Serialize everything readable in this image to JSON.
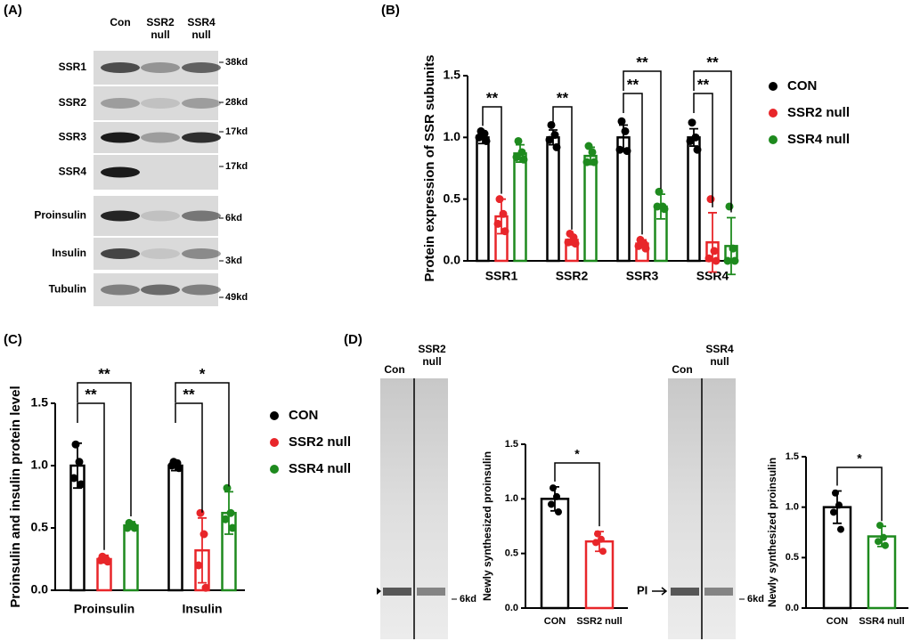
{
  "panel_labels": [
    "(A)",
    "(B)",
    "(C)",
    "(D)"
  ],
  "blot": {
    "lanes": [
      "Con",
      "SSR2 null",
      "SSR4 null"
    ],
    "rows": [
      {
        "label": "SSR1",
        "marker": "38kd"
      },
      {
        "label": "SSR2",
        "marker": "28kd"
      },
      {
        "label": "SSR3",
        "marker": "17kd"
      },
      {
        "label": "SSR4",
        "marker": "17kd"
      },
      {
        "label": "Proinsulin",
        "marker": "6kd"
      },
      {
        "label": "Insulin",
        "marker": "3kd"
      },
      {
        "label": "Tubulin",
        "marker": "49kd"
      }
    ]
  },
  "gels": [
    {
      "lanes": [
        "Con",
        "SSR2 null"
      ],
      "marker": "6kd"
    },
    {
      "lanes": [
        "Con",
        "SSR4 null"
      ],
      "marker": "6kd",
      "arrow_label": "PI"
    }
  ],
  "chart_data": [
    {
      "type": "bar",
      "ylabel": "Protein expression of SSR subunits",
      "categories": [
        "SSR1",
        "SSR2",
        "SSR3",
        "SSR4"
      ],
      "ylim": [
        0,
        1.5
      ],
      "yticks": [
        {
          "value": 0,
          "label": "0.0"
        },
        0.5,
        {
          "value": 1,
          "label": "1.0"
        },
        1.5
      ],
      "series": [
        {
          "name": "CON",
          "color": "#000000",
          "values": [
            1.0,
            1.0,
            1.0,
            1.0
          ],
          "errors": [
            0.05,
            0.06,
            0.1,
            0.07
          ],
          "points": [
            [
              1.05,
              1.03,
              1.0,
              0.97
            ],
            [
              1.1,
              1.02,
              0.98,
              0.92
            ],
            [
              1.13,
              1.05,
              0.9,
              0.89
            ],
            [
              1.12,
              1.0,
              0.97,
              0.9
            ]
          ]
        },
        {
          "name": "SSR2 null",
          "color": "#e8262a",
          "values": [
            0.36,
            0.17,
            0.14,
            0.15
          ],
          "errors": [
            0.14,
            0.04,
            0.03,
            0.24
          ],
          "points": [
            [
              0.5,
              0.38,
              0.3,
              0.24
            ],
            [
              0.22,
              0.19,
              0.15,
              0.14
            ],
            [
              0.17,
              0.14,
              0.12,
              0.1
            ],
            [
              0.5,
              0.08,
              0.02,
              0.0
            ]
          ]
        },
        {
          "name": "SSR4 null",
          "color": "#1e8a1e",
          "values": [
            0.87,
            0.85,
            0.44,
            0.12
          ],
          "errors": [
            0.07,
            0.07,
            0.1,
            0.23
          ],
          "points": [
            [
              0.97,
              0.88,
              0.84,
              0.82
            ],
            [
              0.93,
              0.88,
              0.8,
              0.8
            ],
            [
              0.56,
              0.44,
              0.44,
              0.42
            ],
            [
              0.44,
              0.1,
              0.0,
              0.0
            ]
          ]
        }
      ],
      "annotations": [
        {
          "text": "**",
          "category": 0,
          "series": [
            0,
            1
          ]
        },
        {
          "text": "**",
          "category": 1,
          "series": [
            0,
            1
          ]
        },
        {
          "text": "**",
          "category": 2,
          "series": [
            0,
            1
          ]
        },
        {
          "text": "**",
          "category": 2,
          "series": [
            0,
            2
          ]
        },
        {
          "text": "**",
          "category": 3,
          "series": [
            0,
            1
          ]
        },
        {
          "text": "**",
          "category": 3,
          "series": [
            0,
            2
          ]
        }
      ]
    },
    {
      "type": "bar",
      "ylabel": "Proinsulin and insulin protein level",
      "categories": [
        "Proinsulin",
        "Insulin"
      ],
      "ylim": [
        0,
        1.5
      ],
      "yticks": [
        {
          "value": 0,
          "label": "0.0"
        },
        0.5,
        {
          "value": 1,
          "label": "1.0"
        },
        1.5
      ],
      "series": [
        {
          "name": "CON",
          "color": "#000000",
          "values": [
            1.0,
            1.0
          ],
          "errors": [
            0.18,
            0.04
          ],
          "points": [
            [
              1.17,
              1.03,
              0.9,
              0.85
            ],
            [
              1.03,
              1.02,
              1.0,
              0.98
            ]
          ]
        },
        {
          "name": "SSR2 null",
          "color": "#e8262a",
          "values": [
            0.25,
            0.32
          ],
          "errors": [
            0.03,
            0.26
          ],
          "points": [
            [
              0.27,
              0.25,
              0.24,
              0.23
            ],
            [
              0.62,
              0.45,
              0.2,
              0.02
            ]
          ]
        },
        {
          "name": "SSR4 null",
          "color": "#1e8a1e",
          "values": [
            0.52,
            0.62
          ],
          "errors": [
            0.03,
            0.17
          ],
          "points": [
            [
              0.54,
              0.52,
              0.5,
              0.5
            ],
            [
              0.82,
              0.62,
              0.57,
              0.5
            ]
          ]
        }
      ],
      "annotations": [
        {
          "text": "**",
          "category": 0,
          "series": [
            0,
            1
          ]
        },
        {
          "text": "**",
          "category": 0,
          "series": [
            0,
            2
          ]
        },
        {
          "text": "**",
          "category": 1,
          "series": [
            0,
            1
          ]
        },
        {
          "text": "*",
          "category": 1,
          "series": [
            0,
            2
          ]
        }
      ]
    },
    {
      "type": "bar",
      "ylabel": "Newly synthesized proinsulin",
      "categories": [
        "CON",
        "SSR2 null"
      ],
      "ylim": [
        0,
        1.5
      ],
      "yticks": [
        {
          "value": 0,
          "label": "0.0"
        },
        0.5,
        {
          "value": 1,
          "label": "1.0"
        },
        1.5
      ],
      "values": [
        1.0,
        0.61
      ],
      "errors": [
        0.11,
        0.09
      ],
      "colors": [
        "#000000",
        "#e8262a"
      ],
      "points": [
        [
          1.1,
          1.02,
          0.95,
          0.88
        ],
        [
          0.68,
          0.63,
          0.6,
          0.52
        ]
      ],
      "annotations": [
        {
          "text": "*",
          "categories": [
            0,
            1
          ]
        }
      ]
    },
    {
      "type": "bar",
      "ylabel": "Newly synthesized proinsulin",
      "categories": [
        "CON",
        "SSR4 null"
      ],
      "ylim": [
        0,
        1.5
      ],
      "yticks": [
        {
          "value": 0,
          "label": "0.0"
        },
        0.5,
        {
          "value": 1,
          "label": "1.0"
        },
        1.5
      ],
      "values": [
        1.0,
        0.71
      ],
      "errors": [
        0.16,
        0.1
      ],
      "colors": [
        "#000000",
        "#1e8a1e"
      ],
      "points": [
        [
          1.14,
          1.02,
          0.95,
          0.78
        ],
        [
          0.82,
          0.7,
          0.66,
          0.62
        ]
      ],
      "annotations": [
        {
          "text": "*",
          "categories": [
            0,
            1
          ]
        }
      ]
    }
  ]
}
